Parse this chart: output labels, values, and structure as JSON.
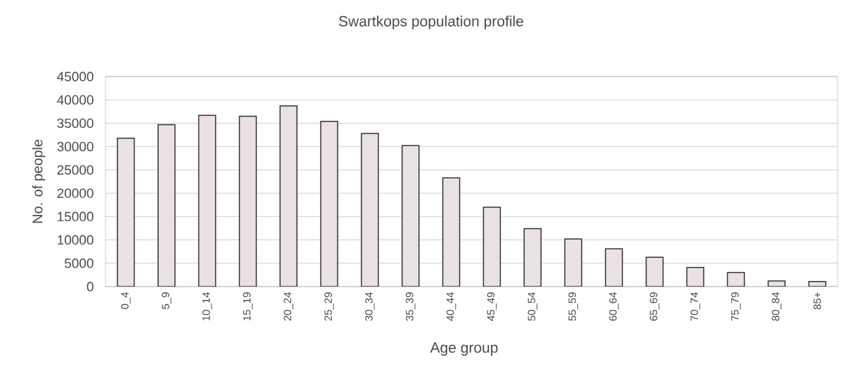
{
  "chart_data": {
    "type": "bar",
    "title": "Swartkops population profile",
    "xlabel": "Age group",
    "ylabel": "No. of people",
    "categories": [
      "0_4",
      "5_9",
      "10_14",
      "15_19",
      "20_24",
      "25_29",
      "30_34",
      "35_39",
      "40_44",
      "45_49",
      "50_54",
      "55_59",
      "60_64",
      "65_69",
      "70_74",
      "75_79",
      "80_84",
      "85+"
    ],
    "values": [
      31800,
      34700,
      36700,
      36500,
      38700,
      35400,
      32800,
      30200,
      23300,
      17000,
      12400,
      10200,
      8100,
      6300,
      4100,
      3000,
      1200,
      1100
    ],
    "color": "#e9e1e4",
    "ylim": [
      0,
      45000
    ],
    "yticks": [
      0,
      5000,
      10000,
      15000,
      20000,
      25000,
      30000,
      35000,
      40000,
      45000
    ],
    "grid": "y"
  }
}
